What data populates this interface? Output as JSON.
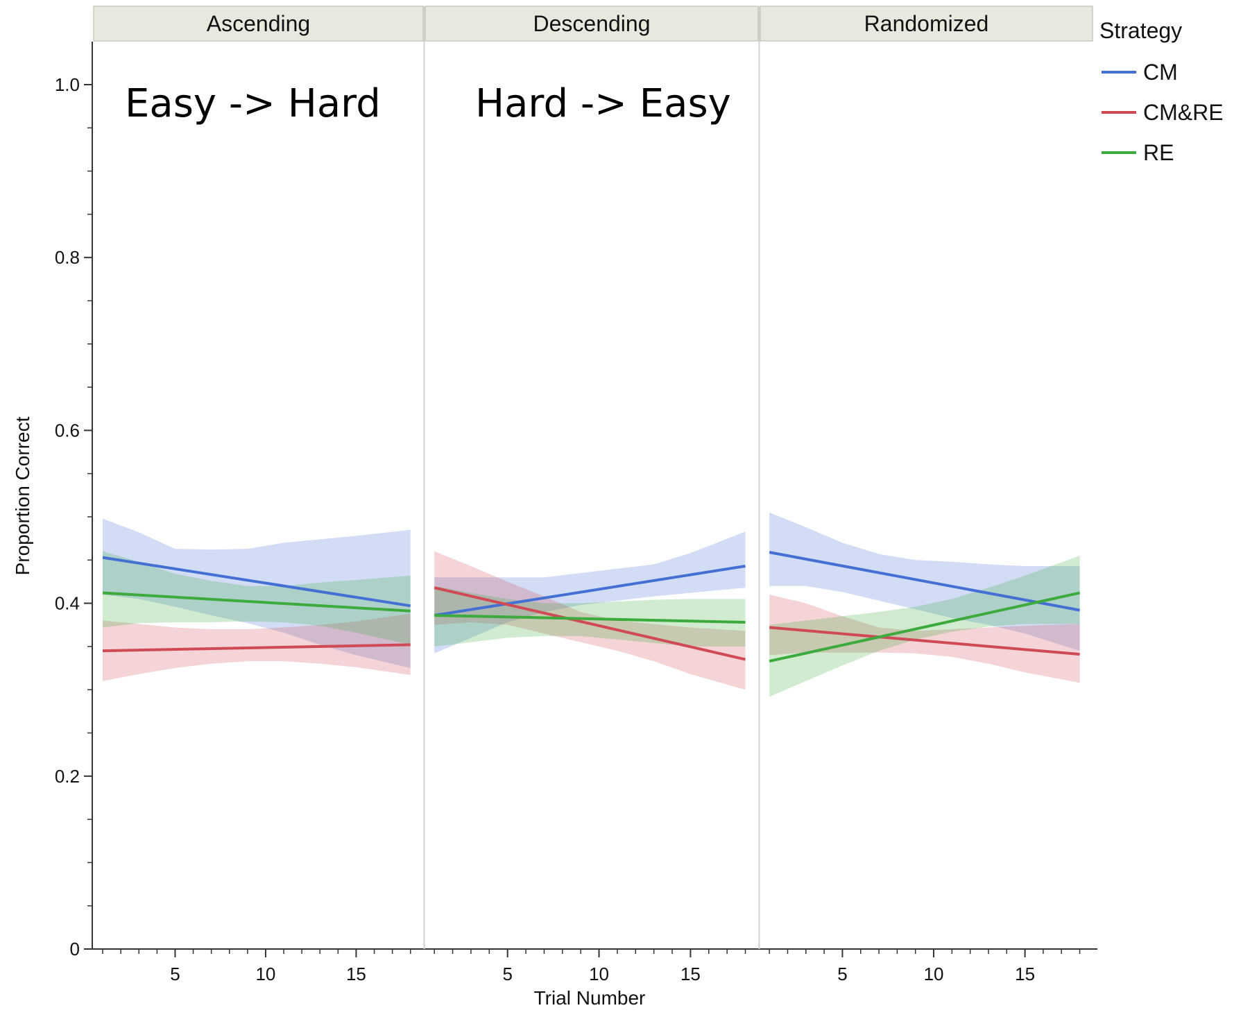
{
  "chart_data": {
    "type": "line",
    "title": "",
    "xlabel": "Trial Number",
    "ylabel": "Proportion Correct",
    "ylim": [
      0,
      1.05
    ],
    "xlim": [
      0.5,
      18.7
    ],
    "x_ticks": [
      5,
      10,
      15
    ],
    "y_ticks": [
      0,
      0.2,
      0.4,
      0.6,
      0.8,
      1.0
    ],
    "y_tick_labels": [
      "0",
      "0.2",
      "0.4",
      "0.6",
      "0.8",
      "1.0"
    ],
    "grid": false,
    "legend": {
      "title": "Strategy",
      "position": "right"
    },
    "colors": {
      "CM": "#4470d4",
      "CM&RE": "#d04a55",
      "RE": "#3caa3c",
      "strip_bg": "#e8e8df"
    },
    "panels": [
      {
        "name": "Ascending",
        "annotation": "Easy -> Hard",
        "series": [
          {
            "name": "CM",
            "x": [
              1,
              18
            ],
            "y": [
              0.453,
              0.397
            ],
            "band_x": [
              1,
              3,
              5,
              7,
              9,
              11,
              13,
              15,
              18
            ],
            "band_upper": [
              0.498,
              0.482,
              0.463,
              0.462,
              0.463,
              0.47,
              0.474,
              0.478,
              0.485
            ],
            "band_lower": [
              0.41,
              0.405,
              0.396,
              0.386,
              0.377,
              0.366,
              0.352,
              0.34,
              0.325
            ]
          },
          {
            "name": "CM&RE",
            "x": [
              1,
              18
            ],
            "y": [
              0.345,
              0.352
            ],
            "band_x": [
              1,
              3,
              5,
              7,
              9,
              11,
              13,
              15,
              18
            ],
            "band_upper": [
              0.38,
              0.376,
              0.372,
              0.37,
              0.37,
              0.372,
              0.375,
              0.379,
              0.388
            ],
            "band_lower": [
              0.31,
              0.318,
              0.325,
              0.33,
              0.333,
              0.333,
              0.33,
              0.326,
              0.317
            ]
          },
          {
            "name": "RE",
            "x": [
              1,
              18
            ],
            "y": [
              0.412,
              0.391
            ],
            "band_x": [
              1,
              3,
              5,
              7,
              9,
              11,
              13,
              15,
              18
            ],
            "band_upper": [
              0.46,
              0.448,
              0.434,
              0.426,
              0.42,
              0.42,
              0.424,
              0.427,
              0.432
            ],
            "band_lower": [
              0.372,
              0.377,
              0.378,
              0.378,
              0.379,
              0.378,
              0.374,
              0.366,
              0.352
            ]
          }
        ]
      },
      {
        "name": "Descending",
        "annotation": "Hard -> Easy",
        "series": [
          {
            "name": "CM",
            "x": [
              1,
              18
            ],
            "y": [
              0.386,
              0.443
            ],
            "band_x": [
              1,
              3,
              5,
              7,
              9,
              11,
              13,
              15,
              18
            ],
            "band_upper": [
              0.43,
              0.43,
              0.43,
              0.43,
              0.435,
              0.44,
              0.445,
              0.458,
              0.483
            ],
            "band_lower": [
              0.342,
              0.36,
              0.378,
              0.39,
              0.398,
              0.403,
              0.408,
              0.412,
              0.418
            ]
          },
          {
            "name": "CM&RE",
            "x": [
              1,
              18
            ],
            "y": [
              0.418,
              0.335
            ],
            "band_x": [
              1,
              3,
              5,
              7,
              9,
              11,
              13,
              15,
              18
            ],
            "band_upper": [
              0.46,
              0.443,
              0.425,
              0.408,
              0.39,
              0.38,
              0.376,
              0.372,
              0.368
            ],
            "band_lower": [
              0.375,
              0.378,
              0.375,
              0.365,
              0.355,
              0.345,
              0.333,
              0.318,
              0.3
            ]
          },
          {
            "name": "RE",
            "x": [
              1,
              18
            ],
            "y": [
              0.386,
              0.378
            ],
            "band_x": [
              1,
              3,
              5,
              7,
              9,
              11,
              13,
              15,
              18
            ],
            "band_upper": [
              0.42,
              0.412,
              0.405,
              0.4,
              0.4,
              0.402,
              0.404,
              0.405,
              0.405
            ],
            "band_lower": [
              0.35,
              0.355,
              0.36,
              0.362,
              0.362,
              0.358,
              0.354,
              0.35,
              0.35
            ]
          }
        ]
      },
      {
        "name": "Randomized",
        "annotation": "",
        "series": [
          {
            "name": "CM",
            "x": [
              1,
              18
            ],
            "y": [
              0.459,
              0.392
            ],
            "band_x": [
              1,
              3,
              5,
              7,
              9,
              11,
              13,
              15,
              18
            ],
            "band_upper": [
              0.505,
              0.488,
              0.47,
              0.457,
              0.45,
              0.448,
              0.445,
              0.443,
              0.443
            ],
            "band_lower": [
              0.42,
              0.42,
              0.413,
              0.403,
              0.393,
              0.383,
              0.375,
              0.365,
              0.345
            ]
          },
          {
            "name": "CM&RE",
            "x": [
              1,
              18
            ],
            "y": [
              0.372,
              0.341
            ],
            "band_x": [
              1,
              3,
              5,
              7,
              9,
              11,
              13,
              15,
              18
            ],
            "band_upper": [
              0.41,
              0.4,
              0.385,
              0.372,
              0.368,
              0.37,
              0.372,
              0.374,
              0.376
            ],
            "band_lower": [
              0.34,
              0.343,
              0.343,
              0.343,
              0.342,
              0.338,
              0.33,
              0.32,
              0.308
            ]
          },
          {
            "name": "RE",
            "x": [
              1,
              18
            ],
            "y": [
              0.333,
              0.412
            ],
            "band_x": [
              1,
              3,
              5,
              7,
              9,
              11,
              13,
              15,
              18
            ],
            "band_upper": [
              0.375,
              0.38,
              0.385,
              0.39,
              0.396,
              0.405,
              0.418,
              0.432,
              0.455
            ],
            "band_lower": [
              0.292,
              0.31,
              0.328,
              0.345,
              0.358,
              0.367,
              0.373,
              0.376,
              0.376
            ]
          }
        ]
      }
    ]
  }
}
